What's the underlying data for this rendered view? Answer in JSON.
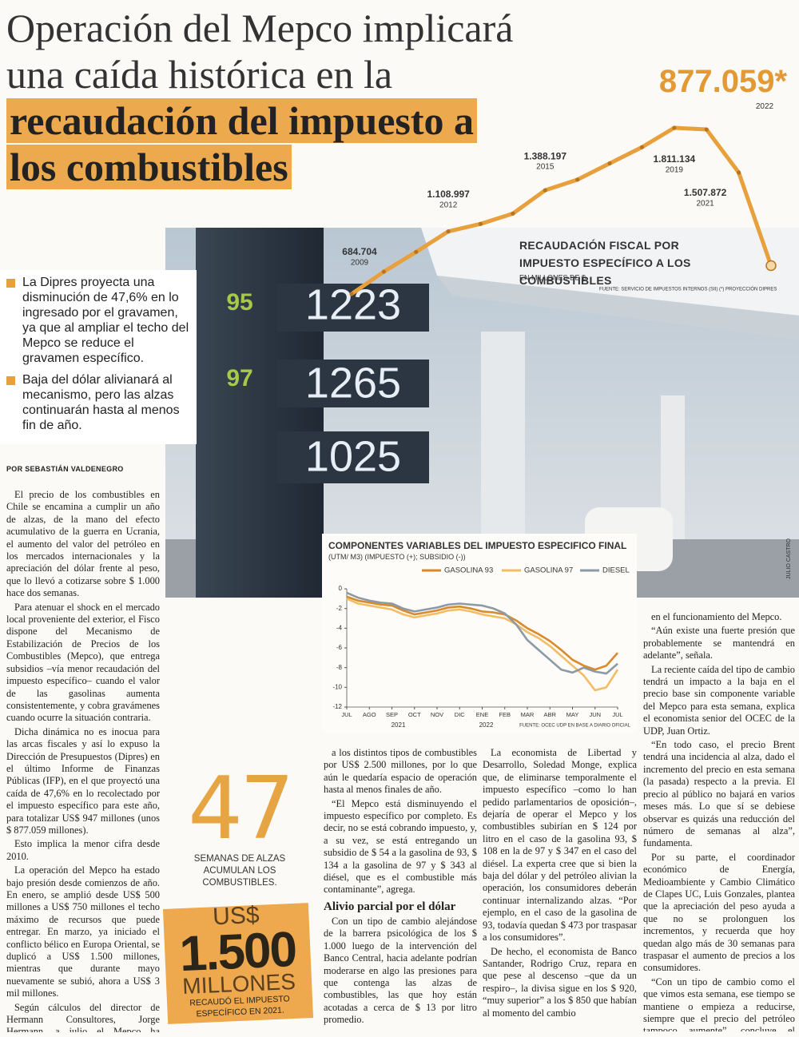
{
  "header": {
    "title": "Operación del Mepco implicará una caída histórica en la",
    "title_highlight": "recaudación del impuesto a los combustibles"
  },
  "bullets": [
    "La Dipres proyecta una disminución de 47,6% en lo ingresado por el gravamen, ya que al ampliar el techo del Mepco se reduce el gravamen específico.",
    "Baja del dólar alivianará al mecanismo, pero las alzas continuarán hasta al menos fin de año."
  ],
  "byline": "POR SEBASTIÁN VALDENEGRO",
  "body": {
    "col1": [
      "El precio de los combustibles en Chile se encamina a cumplir un año de alzas, de la mano del efecto acumulativo de la guerra en Ucrania, el aumento del valor del petróleo en los mercados internacionales y la apreciación del dólar frente al peso, que lo llevó a cotizarse sobre $ 1.000 hace dos semanas.",
      "Para atenuar el shock en el mercado local proveniente del exterior, el Fisco dispone del Mecanismo de Estabilización de Precios de los Combustibles (Mepco), que entrega subsidios –vía menor recaudación del impuesto específico– cuando el valor de las gasolinas aumenta consistentemente, y cobra gravámenes cuando ocurre la situación contraria.",
      "Dicha dinámica no es inocua para las arcas fiscales y así lo expuso la Dirección de Presupuestos (Dipres) en el último Informe de Finanzas Públicas (IFP), en el que proyectó una caída de 47,6% en lo recolectado por el impuesto específico para este año, para totalizar US$ 947 millones (unos $ 877.059 millones).",
      "Esto implica la menor cifra desde 2010.",
      "La operación del Mepco ha estado bajo presión desde comienzos de año. En enero, se amplió desde US$ 500 millones a US$ 750 millones el techo máximo de recursos que puede entregar. En marzo, ya iniciado el conflicto bélico en Europa Oriental, se duplicó a US$ 1.500 millones, mientras que durante mayo nuevamente se subió, ahora a US$ 3 mil millones.",
      "Según cálculos del director de Hermann Consultores, Jorge Hermann, a julio el Mepco ha entregado subsidios"
    ],
    "col2a": [
      "a los distintos tipos de combustibles por US$ 2.500 millones, por lo que aún le quedaría espacio de operación hasta al menos finales de año.",
      "“El Mepco está disminuyendo el impuesto específico por completo. Es decir, no se está cobrando impuesto, y, a su vez, se está entregando un subsidio de $ 54 a la gasolina de 93, $ 134 a la gasolina de 97 y $ 343 al diésel, que es el combustible más contaminante”, agrega."
    ],
    "subheading": "Alivio parcial por el dólar",
    "col2b": [
      "Con un tipo de cambio alejándose de la barrera psicológica de los $ 1.000 luego de la intervención del Banco Central, hacia adelante podrían moderarse en algo las presiones para que contenga las alzas de combustibles, las que hoy están acotadas a cerca de $ 13 por litro promedio."
    ],
    "col3": [
      "La economista de Libertad y Desarrollo, Soledad Monge, explica que, de eliminarse temporalmente el impuesto específico –como lo han pedido parlamentarios de oposición–, dejaría de operar el Mepco y los combustibles subirían en $ 124 por litro en el caso de la gasolina 93, $ 108 en la de 97 y $ 347 en el caso del diésel. La experta cree que si bien la baja del dólar y del petróleo alivian la operación, los consumidores deberán continuar internalizando alzas. “Por ejemplo, en el caso de la gasolina de 93, todavía quedan $ 473 por traspasar a los consumidores”.",
      "De hecho, el economista de Banco Santander, Rodrigo Cruz, repara en que pese al descenso –que da un respiro–, la divisa sigue en los $ 920, “muy superior” a los $ 850 que habían al momento del cambio"
    ],
    "col4": [
      "en el funcionamiento del Mepco.",
      "“Aún existe una fuerte presión que probablemente se mantendrá en adelante”, señala.",
      "La reciente caída del tipo de cambio tendrá un impacto a la baja en el precio base sin componente variable del Mepco para esta semana, explica el economista senior del OCEC de la UDP, Juan Ortiz.",
      "“En todo caso, el precio Brent tendrá una incidencia al alza, dado el incremento del precio en esta semana (la pasada) respecto a la previa. El precio al público no bajará en varios meses más. Lo que sí se debiese observar es quizás una reducción del número de semanas al alza”, fundamenta.",
      "Por su parte, el coordinador económico de Energía, Medioambiente y Cambio Climático de Clapes UC, Luis Gonzales, plantea que la apreciación del peso ayuda a que no se prolonguen los incrementos, y recuerda que hoy quedan algo más de 30 semanas para traspasar el aumento de precios a los consumidores.",
      "“Con un tipo de cambio como el que vimos esta semana, ese tiempo se mantiene o empieza a reducirse, siempre que el precio del petróleo tampoco aumente”, concluye el analista."
    ]
  },
  "stats": [
    {
      "number": "47",
      "caption": "SEMANAS DE ALZAS ACUMULAN LOS COMBUSTIBLES."
    },
    {
      "prefix": "US$",
      "number": "1.500",
      "unit": "MILLONES",
      "caption": "RECAUDÓ EL IMPUESTO ESPECÍFICO EN 2021."
    }
  ],
  "photo": {
    "sign_texts": [
      "95",
      "1223",
      "97",
      "1265",
      "1025"
    ],
    "credit": "JULIO CASTRO"
  },
  "chart_data": [
    {
      "type": "line",
      "title": "RECAUDACIÓN FISCAL POR IMPUESTO ESPECÍFICO A LOS COMBUSTIBLES",
      "subtitle": "EN MILLONES DE $",
      "source": "FUENTE: SERVICIO DE IMPUESTOS INTERNOS (SII)",
      "note": "(*) PROYECCIÓN DIPRES",
      "color": "#e8a03c",
      "categories": [
        "2009",
        null,
        null,
        "2012",
        null,
        null,
        "2015",
        null,
        null,
        null,
        "2019",
        null,
        "2021",
        "2022"
      ],
      "values": [
        684704,
        836000,
        970000,
        1108997,
        1160000,
        1230000,
        1388197,
        1460000,
        1570000,
        1680000,
        1811134,
        1800000,
        1507872,
        877059
      ],
      "value_labels": [
        "684.704",
        null,
        null,
        "1.108.997",
        null,
        null,
        "1.388.197",
        null,
        null,
        null,
        "1.811.134",
        null,
        "1.507.872",
        "877.059*"
      ]
    },
    {
      "type": "line",
      "title": "COMPONENTES VARIABLES DEL IMPUESTO ESPECIFICO FINAL",
      "subtitle": "(UTM/ M3) (IMPUESTO (+); SUBSIDIO (-))",
      "source": "FUENTE: OCEC UDP EN BASE A DIARIO OFICIAL",
      "legend": "top",
      "grid": false,
      "x": [
        0,
        0.5,
        1,
        1.5,
        2,
        2.5,
        3,
        3.5,
        4,
        4.5,
        5,
        5.5,
        6,
        6.5,
        7,
        7.5,
        8,
        8.5,
        9,
        9.5,
        10,
        10.5,
        11,
        11.5,
        12
      ],
      "xlim": [
        0,
        12
      ],
      "xticks": [
        {
          "value": 0,
          "label": "JUL"
        },
        {
          "value": 1,
          "label": "AGO"
        },
        {
          "value": 2,
          "label": "SEP"
        },
        {
          "value": 3,
          "label": "OCT"
        },
        {
          "value": 4,
          "label": "NOV"
        },
        {
          "value": 5,
          "label": "DIC"
        },
        {
          "value": 6,
          "label": "ENE"
        },
        {
          "value": 7,
          "label": "FEB"
        },
        {
          "value": 8,
          "label": "MAR"
        },
        {
          "value": 9,
          "label": "ABR"
        },
        {
          "value": 10,
          "label": "MAY"
        },
        {
          "value": 11,
          "label": "JUN"
        },
        {
          "value": 12,
          "label": "JUL"
        }
      ],
      "x_group_labels": [
        "2021",
        "2022"
      ],
      "ylim": [
        -12,
        0
      ],
      "yticks": [
        0,
        -2,
        -4,
        -6,
        -8,
        -10,
        -12
      ],
      "series": [
        {
          "name": "GASOLINA 93",
          "color": "#d98a2b",
          "values": [
            -0.8,
            -1.2,
            -1.4,
            -1.6,
            -1.7,
            -2.2,
            -2.6,
            -2.4,
            -2.2,
            -1.9,
            -1.8,
            -2.0,
            -2.3,
            -2.4,
            -2.6,
            -3.2,
            -4.0,
            -4.6,
            -5.3,
            -6.2,
            -7.2,
            -7.8,
            -8.2,
            -7.8,
            -6.5
          ]
        },
        {
          "name": "GASOLINA 97",
          "color": "#f3bd66",
          "values": [
            -1.0,
            -1.5,
            -1.7,
            -1.9,
            -2.1,
            -2.6,
            -2.9,
            -2.7,
            -2.5,
            -2.2,
            -2.1,
            -2.3,
            -2.6,
            -2.8,
            -3.0,
            -3.6,
            -4.4,
            -5.0,
            -5.8,
            -6.8,
            -7.8,
            -8.8,
            -10.3,
            -10.0,
            -8.2
          ]
        },
        {
          "name": "DIESEL",
          "color": "#8c9aa6",
          "values": [
            -0.4,
            -0.9,
            -1.2,
            -1.4,
            -1.5,
            -2.0,
            -2.3,
            -2.1,
            -1.9,
            -1.6,
            -1.5,
            -1.6,
            -1.7,
            -2.0,
            -2.5,
            -3.6,
            -5.2,
            -6.2,
            -7.2,
            -8.2,
            -8.5,
            -8.0,
            -8.4,
            -8.6,
            -7.6
          ]
        }
      ]
    }
  ]
}
